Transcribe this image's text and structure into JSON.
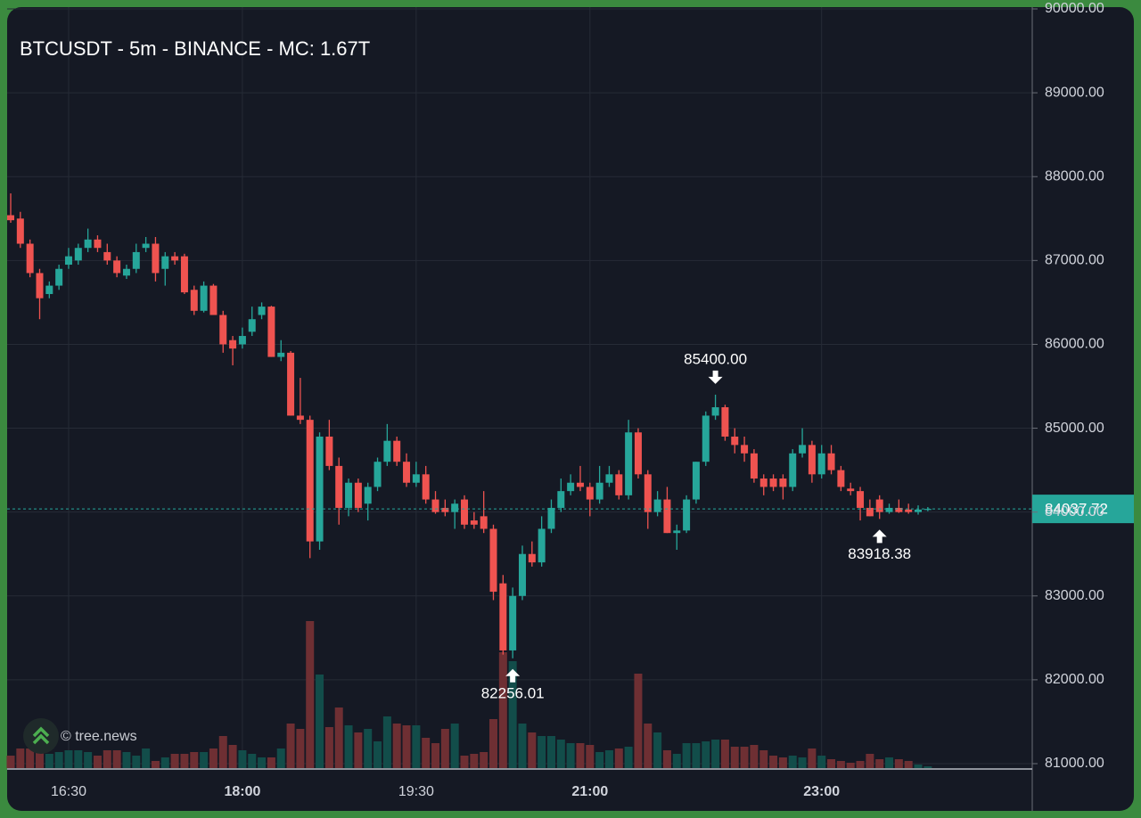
{
  "chart_data": {
    "type": "candlestick",
    "title": "BTCUSDT - 5m - BINANCE - MC: 1.67T",
    "watermark": "© tree.news",
    "x": [
      "16:00",
      "16:05",
      "16:10",
      "16:15",
      "16:20",
      "16:25",
      "16:30",
      "16:35",
      "16:40",
      "16:45",
      "16:50",
      "16:55",
      "17:00",
      "17:05",
      "17:10",
      "17:15",
      "17:20",
      "17:25",
      "17:30",
      "17:35",
      "17:40",
      "17:45",
      "17:50",
      "17:55",
      "18:00",
      "18:05",
      "18:10",
      "18:15",
      "18:20",
      "18:25",
      "18:30",
      "18:35",
      "18:40",
      "18:45",
      "18:50",
      "18:55",
      "19:00",
      "19:05",
      "19:10",
      "19:15",
      "19:20",
      "19:25",
      "19:30",
      "19:35",
      "19:40",
      "19:45",
      "19:50",
      "19:55",
      "20:00",
      "20:05",
      "20:10",
      "20:15",
      "20:20",
      "20:25",
      "20:30",
      "20:35",
      "20:40",
      "20:45",
      "20:50",
      "20:55",
      "21:00",
      "21:05",
      "21:10",
      "21:15",
      "21:20",
      "21:25",
      "21:30",
      "21:35",
      "21:40",
      "21:45",
      "21:50",
      "21:55",
      "22:00",
      "22:05",
      "22:10",
      "22:15",
      "22:20",
      "22:25",
      "22:30",
      "22:35",
      "22:40",
      "22:45",
      "22:50",
      "22:55",
      "23:00",
      "23:05",
      "23:10",
      "23:15",
      "23:20",
      "23:25",
      "23:30",
      "23:35",
      "23:40",
      "23:45",
      "23:50",
      "23:55"
    ],
    "open": [
      87540,
      87500,
      87200,
      86850,
      86600,
      86700,
      86950,
      87000,
      87150,
      87250,
      87100,
      87000,
      86820,
      86900,
      87150,
      87200,
      86900,
      87050,
      87050,
      86650,
      86400,
      86700,
      86350,
      86050,
      86000,
      86150,
      86350,
      86450,
      85850,
      85900,
      85150,
      85100,
      83650,
      84900,
      84550,
      84050,
      84350,
      84100,
      84300,
      84600,
      84850,
      84600,
      84350,
      84450,
      84150,
      84050,
      84000,
      84150,
      83900,
      83950,
      83800,
      83150,
      82350,
      83000,
      83500,
      83400,
      83800,
      84050,
      84250,
      84350,
      84300,
      84150,
      84350,
      84450,
      84200,
      84950,
      84450,
      84000,
      84150,
      83750,
      83780,
      84150,
      84600,
      85150,
      85250,
      84900,
      84800,
      84700,
      84400,
      84400,
      84400,
      84300,
      84700,
      84800,
      84450,
      84700,
      84500,
      84280,
      84250,
      84050,
      84150,
      84000,
      84050,
      84030,
      84000,
      84030
    ],
    "high": [
      87800,
      87580,
      87250,
      86900,
      86750,
      86950,
      87150,
      87200,
      87380,
      87300,
      87200,
      87050,
      86950,
      87200,
      87280,
      87280,
      87100,
      87100,
      87080,
      86700,
      86750,
      86720,
      86400,
      86100,
      86200,
      86450,
      86500,
      86460,
      86050,
      85920,
      85600,
      85150,
      84950,
      85100,
      84650,
      84400,
      84400,
      84350,
      84650,
      85050,
      84900,
      84700,
      84600,
      84550,
      84250,
      84150,
      84150,
      84200,
      84000,
      84250,
      83850,
      83250,
      83100,
      83600,
      83650,
      83950,
      84150,
      84400,
      84450,
      84550,
      84350,
      84550,
      84550,
      84500,
      85100,
      85000,
      84500,
      84250,
      84300,
      83850,
      84200,
      84600,
      85200,
      85400,
      85280,
      85000,
      84900,
      84750,
      84450,
      84450,
      84450,
      84750,
      85000,
      84850,
      84800,
      84800,
      84550,
      84350,
      84300,
      84150,
      84200,
      84100,
      84150,
      84100,
      84080,
      84060
    ],
    "low": [
      87450,
      87150,
      86800,
      86300,
      86550,
      86650,
      86900,
      86950,
      87100,
      87100,
      86950,
      86800,
      86780,
      86850,
      87100,
      86750,
      86700,
      86950,
      86600,
      86350,
      86380,
      86350,
      85900,
      85750,
      85950,
      86100,
      86300,
      85850,
      85800,
      85150,
      85050,
      83450,
      83550,
      84500,
      83850,
      83950,
      84000,
      83900,
      84250,
      84550,
      84550,
      84300,
      84300,
      84100,
      83980,
      83950,
      83800,
      83800,
      83800,
      83750,
      82950,
      82300,
      82256.01,
      82950,
      83350,
      83350,
      83750,
      84000,
      84200,
      84250,
      83950,
      84100,
      84300,
      84150,
      84150,
      84400,
      83800,
      83950,
      83750,
      83550,
      83750,
      84100,
      84550,
      85100,
      84850,
      84700,
      84600,
      84350,
      84200,
      84250,
      84150,
      84250,
      84650,
      84350,
      84400,
      84450,
      84250,
      84200,
      83900,
      83950,
      83918.38,
      83980,
      83990,
      83980,
      83970,
      84010
    ],
    "close": [
      87480,
      87200,
      86850,
      86550,
      86700,
      86900,
      87050,
      87150,
      87250,
      87150,
      87000,
      86850,
      86900,
      87100,
      87200,
      86850,
      87050,
      87000,
      86620,
      86400,
      86700,
      86350,
      86000,
      85950,
      86100,
      86300,
      86450,
      85850,
      85900,
      85150,
      85100,
      83650,
      84900,
      84550,
      84050,
      84350,
      84050,
      84300,
      84600,
      84850,
      84600,
      84350,
      84450,
      84150,
      84000,
      84000,
      84100,
      83850,
      83850,
      83800,
      83050,
      82350,
      83000,
      83500,
      83400,
      83800,
      84050,
      84250,
      84350,
      84300,
      84150,
      84350,
      84450,
      84200,
      84950,
      84450,
      84000,
      84150,
      83750,
      83780,
      84150,
      84600,
      85150,
      85250,
      84900,
      84800,
      84700,
      84400,
      84300,
      84300,
      84300,
      84700,
      84800,
      84450,
      84700,
      84500,
      84300,
      84250,
      84050,
      83950,
      84000,
      84050,
      84000,
      84000,
      84030,
      84037.72
    ],
    "volume": [
      14,
      22,
      22,
      18,
      16,
      18,
      20,
      20,
      18,
      14,
      20,
      20,
      18,
      14,
      22,
      8,
      12,
      16,
      16,
      18,
      18,
      22,
      36,
      26,
      20,
      16,
      12,
      12,
      22,
      50,
      44,
      165,
      105,
      46,
      68,
      48,
      40,
      44,
      30,
      58,
      50,
      48,
      48,
      34,
      28,
      44,
      50,
      14,
      16,
      18,
      55,
      130,
      120,
      50,
      40,
      36,
      36,
      32,
      28,
      28,
      26,
      18,
      20,
      22,
      24,
      106,
      50,
      40,
      20,
      16,
      28,
      28,
      30,
      32,
      32,
      24,
      24,
      26,
      20,
      14,
      12,
      14,
      12,
      22,
      14,
      10,
      8,
      6,
      8,
      16,
      10,
      12,
      10,
      8,
      4,
      2
    ],
    "up_color": "#26a69a",
    "down_color": "#ef5350",
    "volume_up_color": "#124d4a",
    "volume_down_color": "#6e2f33",
    "ylim": [
      81000,
      90000
    ],
    "yticks": [
      {
        "value": 81000,
        "label": "81000.00"
      },
      {
        "value": 82000,
        "label": "82000.00"
      },
      {
        "value": 83000,
        "label": "83000.00"
      },
      {
        "value": 84000,
        "label": "84000.00"
      },
      {
        "value": 85000,
        "label": "85000.00"
      },
      {
        "value": 86000,
        "label": "86000.00"
      },
      {
        "value": 87000,
        "label": "87000.00"
      },
      {
        "value": 88000,
        "label": "88000.00"
      },
      {
        "value": 89000,
        "label": "89000.00"
      },
      {
        "value": 90000,
        "label": "90000.00"
      }
    ],
    "xticks": [
      "16:30",
      "18:00",
      "19:30",
      "21:00",
      "23:00"
    ],
    "grid": true,
    "markers": [
      {
        "time": "22:05",
        "value": 85400,
        "label": "85400.00",
        "side": "above"
      },
      {
        "time": "20:20",
        "value": 82256.01,
        "label": "82256.01",
        "side": "below"
      },
      {
        "time": "23:30",
        "value": 83918.38,
        "label": "83918.38",
        "side": "below"
      }
    ],
    "last_price": {
      "value": 84037.72,
      "label": "84037.72"
    }
  }
}
